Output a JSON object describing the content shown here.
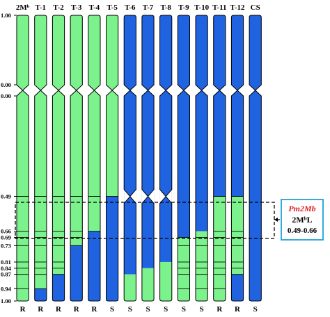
{
  "colors": {
    "donor": "#7bf28c",
    "recipient": "#1f63e0",
    "outline": "#000000",
    "box_border": "#1fa2d8",
    "gene_name": "#e0202a"
  },
  "chromosomes": [
    {
      "label": "2Mᵇ",
      "phenotype": "R",
      "cuts": [
        0.49,
        0.66,
        0.69,
        0.73,
        0.81,
        0.84,
        0.87,
        0.94
      ],
      "segments": [
        {
          "from": 0.0,
          "to": 1.0,
          "color": "donor"
        }
      ]
    },
    {
      "label": "T-1",
      "phenotype": "R",
      "cuts": [
        0.49,
        0.66,
        0.69,
        0.73,
        0.81,
        0.84,
        0.87,
        0.94
      ],
      "segments": [
        {
          "from": 0.0,
          "to": 0.94,
          "color": "donor"
        },
        {
          "from": 0.94,
          "to": 1.0,
          "color": "recipient"
        }
      ]
    },
    {
      "label": "T-2",
      "phenotype": "R",
      "cuts": [
        0.49,
        0.66,
        0.69,
        0.73,
        0.81,
        0.84,
        0.87
      ],
      "segments": [
        {
          "from": 0.0,
          "to": 0.87,
          "color": "donor"
        },
        {
          "from": 0.87,
          "to": 1.0,
          "color": "recipient"
        }
      ]
    },
    {
      "label": "T-3",
      "phenotype": "R",
      "cuts": [
        0.49,
        0.66,
        0.69,
        0.73
      ],
      "segments": [
        {
          "from": 0.0,
          "to": 0.73,
          "color": "donor"
        },
        {
          "from": 0.73,
          "to": 1.0,
          "color": "recipient"
        }
      ]
    },
    {
      "label": "T-4",
      "phenotype": "R",
      "cuts": [
        0.49,
        0.66
      ],
      "segments": [
        {
          "from": 0.0,
          "to": 0.66,
          "color": "donor"
        },
        {
          "from": 0.66,
          "to": 1.0,
          "color": "recipient"
        }
      ]
    },
    {
      "label": "T-5",
      "phenotype": "S",
      "cuts": [
        0.49
      ],
      "segments": [
        {
          "from": 0.0,
          "to": 0.49,
          "color": "donor"
        },
        {
          "from": 0.49,
          "to": 1.0,
          "color": "recipient"
        }
      ]
    },
    {
      "label": "T-6",
      "phenotype": "S",
      "cuts": [],
      "segments": [
        {
          "from": 0.0,
          "to": 0.87,
          "color": "recipient"
        },
        {
          "from": 0.87,
          "to": 1.0,
          "color": "donor"
        }
      ]
    },
    {
      "label": "T-7",
      "phenotype": "S",
      "cuts": [],
      "segments": [
        {
          "from": 0.0,
          "to": 0.84,
          "color": "recipient"
        },
        {
          "from": 0.84,
          "to": 1.0,
          "color": "donor"
        }
      ]
    },
    {
      "label": "T-8",
      "phenotype": "S",
      "cuts": [],
      "segments": [
        {
          "from": 0.0,
          "to": 0.81,
          "color": "recipient"
        },
        {
          "from": 0.81,
          "to": 1.0,
          "color": "donor"
        }
      ]
    },
    {
      "label": "T-9",
      "phenotype": "S",
      "cuts": [
        0.69,
        0.73,
        0.81,
        0.84,
        0.87,
        0.94
      ],
      "segments": [
        {
          "from": 0.0,
          "to": 0.69,
          "color": "recipient"
        },
        {
          "from": 0.69,
          "to": 1.0,
          "color": "donor"
        }
      ]
    },
    {
      "label": "T-10",
      "phenotype": "S",
      "cuts": [
        0.69,
        0.73,
        0.81,
        0.84,
        0.87,
        0.94
      ],
      "segments": [
        {
          "from": 0.0,
          "to": 0.66,
          "color": "recipient"
        },
        {
          "from": 0.66,
          "to": 1.0,
          "color": "donor"
        }
      ]
    },
    {
      "label": "T-11",
      "phenotype": "R",
      "cuts": [
        0.49,
        0.66,
        0.69,
        0.73,
        0.81,
        0.84,
        0.87,
        0.94
      ],
      "segments": [
        {
          "from": 0.0,
          "to": 0.49,
          "color": "recipient"
        },
        {
          "from": 0.49,
          "to": 1.0,
          "color": "donor"
        }
      ]
    },
    {
      "label": "T-12",
      "phenotype": "R",
      "cuts": [
        0.49,
        0.66,
        0.69,
        0.73,
        0.81,
        0.84,
        0.87
      ],
      "segments": [
        {
          "from": 0.0,
          "to": 0.49,
          "color": "recipient"
        },
        {
          "from": 0.49,
          "to": 0.87,
          "color": "donor"
        },
        {
          "from": 0.87,
          "to": 1.0,
          "color": "recipient"
        }
      ]
    },
    {
      "label": "CS",
      "phenotype": "S",
      "cuts": [],
      "segments": [
        {
          "from": 0.0,
          "to": 1.0,
          "color": "recipient"
        }
      ]
    }
  ],
  "short_arm": [
    {
      "label": "2Mᵇ",
      "color": "donor"
    },
    {
      "label": "T-1",
      "color": "donor"
    },
    {
      "label": "T-2",
      "color": "donor"
    },
    {
      "label": "T-3",
      "color": "donor"
    },
    {
      "label": "T-4",
      "color": "donor"
    },
    {
      "label": "T-5",
      "color": "donor"
    },
    {
      "label": "T-6",
      "color": "recipient"
    },
    {
      "label": "T-7",
      "color": "recipient"
    },
    {
      "label": "T-8",
      "color": "recipient"
    },
    {
      "label": "T-9",
      "color": "recipient"
    },
    {
      "label": "T-10",
      "color": "recipient"
    },
    {
      "label": "T-11",
      "color": "recipient"
    },
    {
      "label": "T-12",
      "color": "recipient"
    },
    {
      "label": "CS",
      "color": "recipient"
    }
  ],
  "short_arm_ticks": [
    "1.00",
    "0.00"
  ],
  "long_arm_ticks": [
    {
      "value": 0.0,
      "label": "0.00"
    },
    {
      "value": 0.49,
      "label": "0.49"
    },
    {
      "value": 0.66,
      "label": "0.66"
    },
    {
      "value": 0.69,
      "label": "0.69"
    },
    {
      "value": 0.73,
      "label": "0.73"
    },
    {
      "value": 0.81,
      "label": "0.81"
    },
    {
      "value": 0.84,
      "label": "0.84"
    },
    {
      "value": 0.87,
      "label": "0.87"
    },
    {
      "value": 0.94,
      "label": "0.94"
    },
    {
      "value": 1.0,
      "label": "1.00"
    }
  ],
  "interval": {
    "from": 0.49,
    "to": 0.66
  },
  "annotation": {
    "gene": "Pm2Mb",
    "arm": "2MᵇL",
    "range": "0.49-0.66"
  },
  "ui": {
    "t6_constriction": 0.49
  }
}
